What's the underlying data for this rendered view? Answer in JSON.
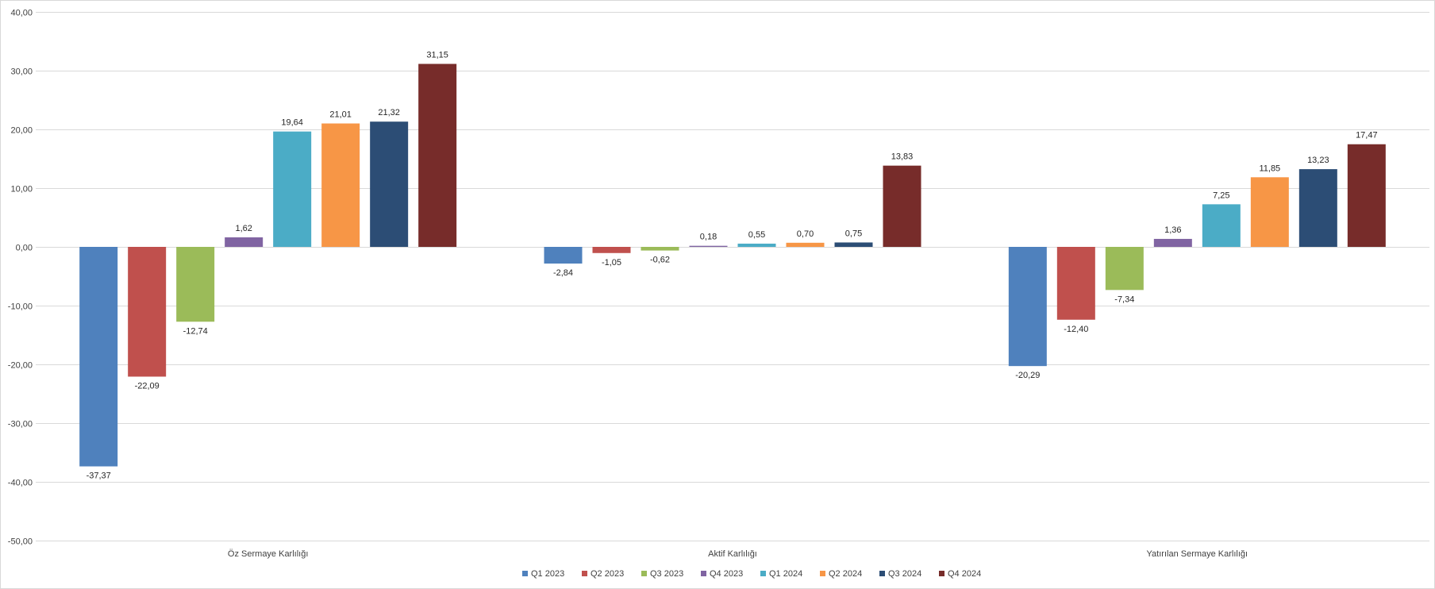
{
  "chart_data": {
    "type": "bar",
    "categories": [
      "Öz Sermaye Karlılığı",
      "Aktif Karlılığı",
      "Yatırılan Sermaye Karlılığı"
    ],
    "series": [
      {
        "name": "Q1 2023",
        "color": "#4f81bd",
        "values": [
          -37.37,
          -2.84,
          -20.29
        ],
        "labels": [
          "-37,37",
          "-2,84",
          "-20,29"
        ]
      },
      {
        "name": "Q2 2023",
        "color": "#c0504d",
        "values": [
          -22.09,
          -1.05,
          -12.4
        ],
        "labels": [
          "-22,09",
          "-1,05",
          "-12,40"
        ]
      },
      {
        "name": "Q3 2023",
        "color": "#9bbb59",
        "values": [
          -12.74,
          -0.62,
          -7.34
        ],
        "labels": [
          "-12,74",
          "-0,62",
          "-7,34"
        ]
      },
      {
        "name": "Q4 2023",
        "color": "#8064a2",
        "values": [
          1.62,
          0.18,
          1.36
        ],
        "labels": [
          "1,62",
          "0,18",
          "1,36"
        ]
      },
      {
        "name": "Q1 2024",
        "color": "#4bacc6",
        "values": [
          19.64,
          0.55,
          7.25
        ],
        "labels": [
          "19,64",
          "0,55",
          "7,25"
        ]
      },
      {
        "name": "Q2 2024",
        "color": "#f79646",
        "values": [
          21.01,
          0.7,
          11.85
        ],
        "labels": [
          "21,01",
          "0,70",
          "11,85"
        ]
      },
      {
        "name": "Q3 2024",
        "color": "#2c4d75",
        "values": [
          21.32,
          0.75,
          13.23
        ],
        "labels": [
          "21,32",
          "0,75",
          "13,23"
        ]
      },
      {
        "name": "Q4 2024",
        "color": "#772c2a",
        "values": [
          31.15,
          13.83,
          17.47
        ],
        "labels": [
          "31,15",
          "13,83",
          "17,47"
        ]
      }
    ],
    "y_ticks": [
      40,
      30,
      20,
      10,
      0,
      -10,
      -20,
      -30,
      -40,
      -50
    ],
    "y_tick_labels": [
      "40,00",
      "30,00",
      "20,00",
      "10,00",
      "0,00",
      "-10,00",
      "-20,00",
      "-30,00",
      "-40,00",
      "-50,00"
    ],
    "ylim": [
      -50,
      40
    ],
    "grid": true,
    "legend_position": "bottom",
    "title": "",
    "xlabel": "",
    "ylabel": ""
  }
}
